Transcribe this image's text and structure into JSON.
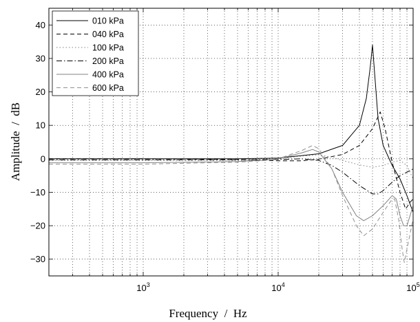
{
  "chart_data": {
    "type": "line",
    "xlabel": "Frequency  /  Hz",
    "ylabel": "Amplitude  /  dB",
    "x_scale": "log",
    "xlim": [
      200,
      100000
    ],
    "ylim": [
      -35,
      45
    ],
    "grid": true,
    "legend_position": "top-left",
    "x_ticks": [
      {
        "value": 1000,
        "base": "10",
        "exp": "3"
      },
      {
        "value": 10000,
        "base": "10",
        "exp": "4"
      },
      {
        "value": 100000,
        "base": "10",
        "exp": "5"
      }
    ],
    "y_ticks": [
      {
        "value": -30,
        "label": "−30"
      },
      {
        "value": -20,
        "label": "−20"
      },
      {
        "value": -10,
        "label": "−10"
      },
      {
        "value": 0,
        "label": "0"
      },
      {
        "value": 10,
        "label": "10"
      },
      {
        "value": 20,
        "label": "20"
      },
      {
        "value": 30,
        "label": "30"
      },
      {
        "value": 40,
        "label": "40"
      }
    ],
    "series": [
      {
        "name": "010 kPa",
        "color": "#000000",
        "dash": "",
        "points": [
          [
            200,
            0
          ],
          [
            1000,
            0
          ],
          [
            5000,
            0
          ],
          [
            10000,
            0.2
          ],
          [
            20000,
            1.5
          ],
          [
            30000,
            4
          ],
          [
            40000,
            10
          ],
          [
            45000,
            18
          ],
          [
            48000,
            27
          ],
          [
            50000,
            34
          ],
          [
            52000,
            25
          ],
          [
            55000,
            12
          ],
          [
            60000,
            4
          ],
          [
            70000,
            -2
          ],
          [
            80000,
            -6
          ],
          [
            90000,
            -11
          ],
          [
            100000,
            -16
          ]
        ]
      },
      {
        "name": "040 kPa",
        "color": "#000000",
        "dash": "6,4",
        "points": [
          [
            200,
            0
          ],
          [
            1000,
            0
          ],
          [
            5000,
            -0.2
          ],
          [
            10000,
            -0.6
          ],
          [
            15000,
            -0.6
          ],
          [
            20000,
            -0.1
          ],
          [
            30000,
            1.3
          ],
          [
            40000,
            4
          ],
          [
            50000,
            9
          ],
          [
            57000,
            14
          ],
          [
            62000,
            9
          ],
          [
            70000,
            -1
          ],
          [
            80000,
            -10
          ],
          [
            88000,
            -15
          ],
          [
            95000,
            -13
          ],
          [
            100000,
            -12
          ]
        ]
      },
      {
        "name": "100 kPa",
        "color": "#808080",
        "dash": "1.5,3",
        "points": [
          [
            200,
            -0.5
          ],
          [
            1000,
            -0.5
          ],
          [
            5000,
            -0.5
          ],
          [
            10000,
            0
          ],
          [
            15000,
            0.8
          ],
          [
            20000,
            1.2
          ],
          [
            25000,
            0.5
          ],
          [
            30000,
            -0.5
          ],
          [
            40000,
            -1.8
          ],
          [
            50000,
            -2.5
          ],
          [
            60000,
            -2
          ],
          [
            70000,
            -1
          ],
          [
            80000,
            -0.5
          ],
          [
            90000,
            -2
          ],
          [
            100000,
            -6
          ]
        ]
      },
      {
        "name": "200 kPa",
        "color": "#000000",
        "dash": "8,3,1.5,3",
        "points": [
          [
            200,
            -0.3
          ],
          [
            1000,
            -0.3
          ],
          [
            5000,
            -0.3
          ],
          [
            10000,
            -0.2
          ],
          [
            15000,
            0
          ],
          [
            20000,
            -0.5
          ],
          [
            25000,
            -2
          ],
          [
            30000,
            -4
          ],
          [
            40000,
            -8
          ],
          [
            50000,
            -10.5
          ],
          [
            55000,
            -10.5
          ],
          [
            60000,
            -9.5
          ],
          [
            70000,
            -7
          ],
          [
            80000,
            -5
          ],
          [
            90000,
            -4
          ],
          [
            100000,
            -3
          ]
        ]
      },
      {
        "name": "400 kPa",
        "color": "#808080",
        "dash": "",
        "points": [
          [
            200,
            -1.2
          ],
          [
            1000,
            -1.2
          ],
          [
            5000,
            -0.8
          ],
          [
            8000,
            -0.4
          ],
          [
            10000,
            0
          ],
          [
            15000,
            1.8
          ],
          [
            18000,
            2.8
          ],
          [
            20000,
            2
          ],
          [
            25000,
            -3
          ],
          [
            30000,
            -10
          ],
          [
            38000,
            -17
          ],
          [
            43000,
            -18.5
          ],
          [
            50000,
            -17
          ],
          [
            60000,
            -14
          ],
          [
            70000,
            -11
          ],
          [
            75000,
            -12
          ],
          [
            80000,
            -17
          ],
          [
            85000,
            -20
          ],
          [
            90000,
            -20
          ],
          [
            100000,
            -14
          ]
        ]
      },
      {
        "name": "600 kPa",
        "color": "#909090",
        "dash": "6,4",
        "points": [
          [
            200,
            -1.6
          ],
          [
            1000,
            -1.6
          ],
          [
            5000,
            -1
          ],
          [
            8000,
            -0.5
          ],
          [
            10000,
            0
          ],
          [
            15000,
            2.5
          ],
          [
            18000,
            4
          ],
          [
            20000,
            3
          ],
          [
            25000,
            -3
          ],
          [
            30000,
            -11
          ],
          [
            38000,
            -20
          ],
          [
            43000,
            -23
          ],
          [
            50000,
            -21
          ],
          [
            60000,
            -16
          ],
          [
            70000,
            -12
          ],
          [
            73000,
            -12
          ],
          [
            78000,
            -18
          ],
          [
            83000,
            -27
          ],
          [
            86000,
            -31
          ],
          [
            90000,
            -27
          ],
          [
            100000,
            -18
          ]
        ]
      }
    ]
  }
}
